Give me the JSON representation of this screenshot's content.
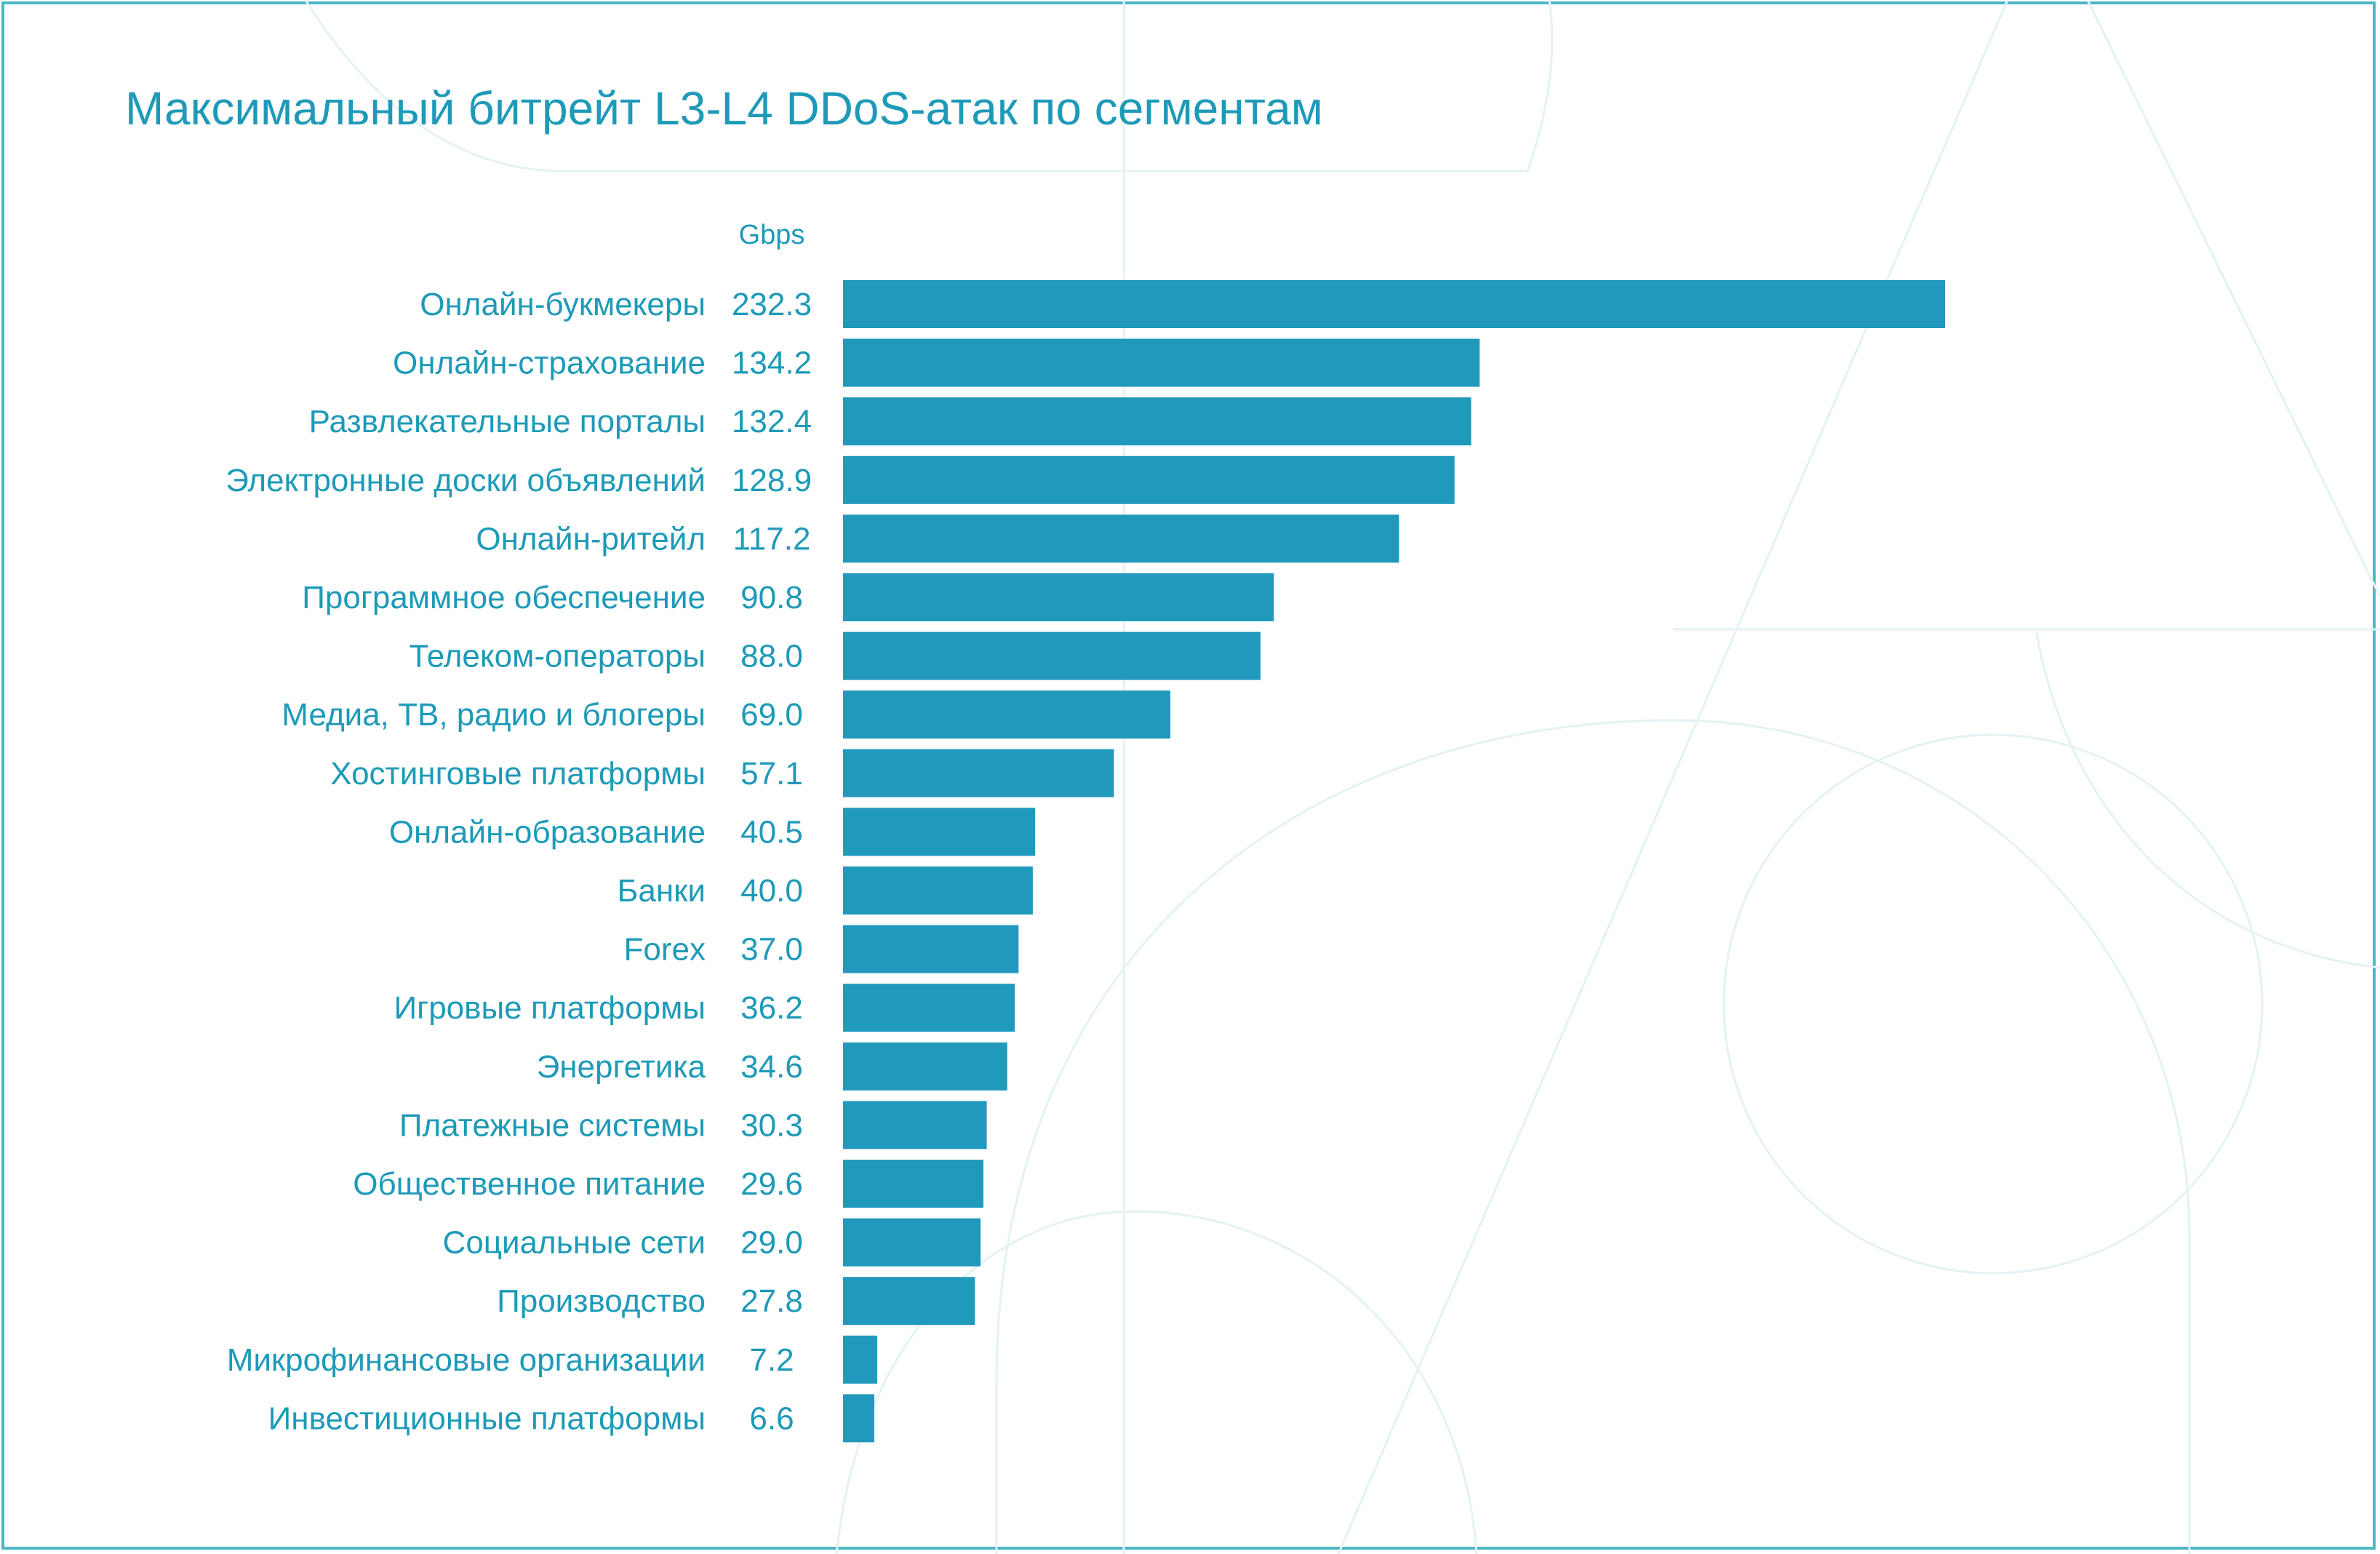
{
  "colors": {
    "accent_text": "#1e9ab8",
    "bar": "#2199bc",
    "frame": "#4bb7c4",
    "decor_lines": "#e3f1f3"
  },
  "chart_data": {
    "type": "bar",
    "orientation": "horizontal",
    "title": "Максимальный битрейт L3-L4 DDoS-атак по сегментам",
    "unit_label": "Gbps",
    "categories": [
      "Онлайн-букмекеры",
      "Онлайн-страхование",
      "Развлекательные порталы",
      "Электронные доски объявлений",
      "Онлайн-ритейл",
      "Программное обеспечение",
      "Телеком-операторы",
      "Медиа, ТВ, радио и блогеры",
      "Хостинговые платформы",
      "Онлайн-образование",
      "Банки",
      "Forex",
      "Игровые платформы",
      "Энергетика",
      "Платежные системы",
      "Общественное питание",
      "Социальные сети",
      "Производство",
      "Микрофинансовые организации",
      "Инвестиционные платформы"
    ],
    "values": [
      232.3,
      134.2,
      132.4,
      128.9,
      117.2,
      90.8,
      88.0,
      69.0,
      57.1,
      40.5,
      40.0,
      37.0,
      36.2,
      34.6,
      30.3,
      29.6,
      29.0,
      27.8,
      7.2,
      6.6
    ],
    "value_labels": [
      "232.3",
      "134.2",
      "132.4",
      "128.9",
      "117.2",
      "90.8",
      "88.0",
      "69.0",
      "57.1",
      "40.5",
      "40.0",
      "37.0",
      "36.2",
      "34.6",
      "30.3",
      "29.6",
      "29.0",
      "27.8",
      "7.2",
      "6.6"
    ],
    "grid": false,
    "legend": "none"
  }
}
